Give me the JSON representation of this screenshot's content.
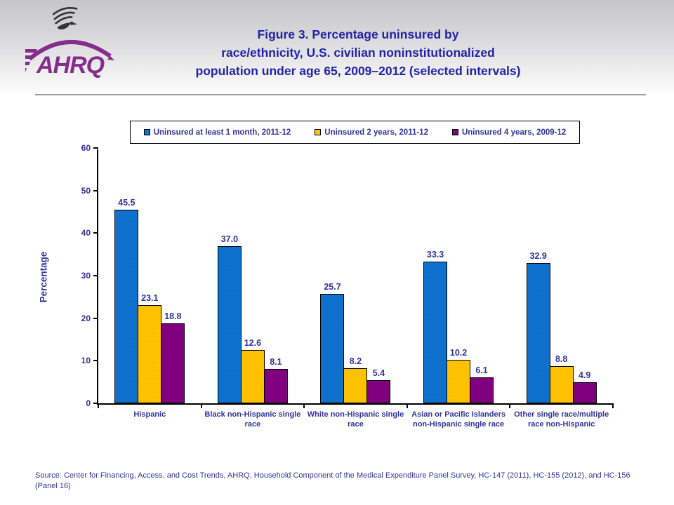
{
  "header": {
    "title_lines": [
      "Figure 3. Percentage uninsured by",
      "race/ethnicity, U.S. civilian noninstitutionalized",
      "population under age 65, 2009–2012 (selected intervals)"
    ],
    "logo_text": "AHRQ"
  },
  "icons": {
    "logo_eagle": "hhs-eagle-icon"
  },
  "colors": {
    "title_navy": "#2323a8",
    "text_navy": "#333399",
    "logo_purple": "#862d8c",
    "series_blue": "#0e71ce",
    "series_gold": "#ffc200",
    "series_purple": "#800080"
  },
  "chart_data": {
    "type": "bar",
    "title": "Figure 3. Percentage uninsured by race/ethnicity, U.S. civilian noninstitutionalized population under age 65, 2009–2012 (selected intervals)",
    "xlabel": "",
    "ylabel": "Percentage",
    "ylim": [
      0,
      60
    ],
    "yticks": [
      0,
      10,
      20,
      30,
      40,
      50,
      60
    ],
    "grid": false,
    "legend_position": "top",
    "value_label_decimals": 1,
    "categories": [
      "Hispanic",
      "Black non-Hispanic single race",
      "White non-Hispanic single race",
      "Asian or Pacific Islanders non-Hispanic single race",
      "Other single race/multiple race non-Hispanic"
    ],
    "series": [
      {
        "name": "Uninsured at least 1 month, 2011-12",
        "color": "#0e71ce",
        "values": [
          45.5,
          37.0,
          25.7,
          33.3,
          32.9
        ]
      },
      {
        "name": "Uninsured 2 years, 2011-12",
        "color": "#ffc200",
        "values": [
          23.1,
          12.6,
          8.2,
          10.2,
          8.8
        ]
      },
      {
        "name": "Uninsured 4 years, 2009-12",
        "color": "#800080",
        "values": [
          18.8,
          8.1,
          5.4,
          6.1,
          4.9
        ]
      }
    ]
  },
  "source": {
    "text": "Source: Center for Financing, Access, and Cost Trends, AHRQ, Household Component of the Medical Expenditure Panel Survey,  HC-147 (2011), HC-155 (2012), and HC-156 (Panel 16)"
  }
}
